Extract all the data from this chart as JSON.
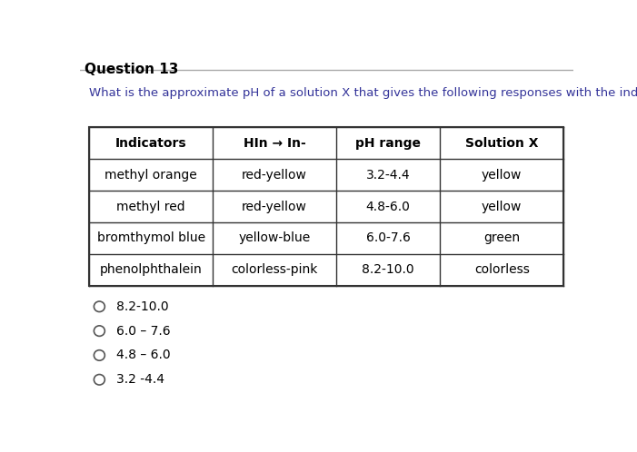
{
  "title": "Question 13",
  "question_text": "What is the approximate pH of a solution X that gives the following responses with the indicators shown?",
  "col_headers": [
    "Indicators",
    "HIn → In-",
    "pH range",
    "Solution X"
  ],
  "rows": [
    [
      "methyl orange",
      "red-yellow",
      "3.2-4.4",
      "yellow"
    ],
    [
      "methyl red",
      "red-yellow",
      "4.8-6.0",
      "yellow"
    ],
    [
      "bromthymol blue",
      "yellow-blue",
      "6.0-7.6",
      "green"
    ],
    [
      "phenolphthalein",
      "colorless-pink",
      "8.2-10.0",
      "colorless"
    ]
  ],
  "options": [
    "8.2-10.0",
    "6.0 – 7.6",
    "4.8 – 6.0",
    "3.2 -4.4"
  ],
  "bg_color": "#ffffff",
  "border_color": "#333333",
  "title_fontsize": 11,
  "question_fontsize": 9.5,
  "table_fontsize": 10,
  "option_fontsize": 10
}
